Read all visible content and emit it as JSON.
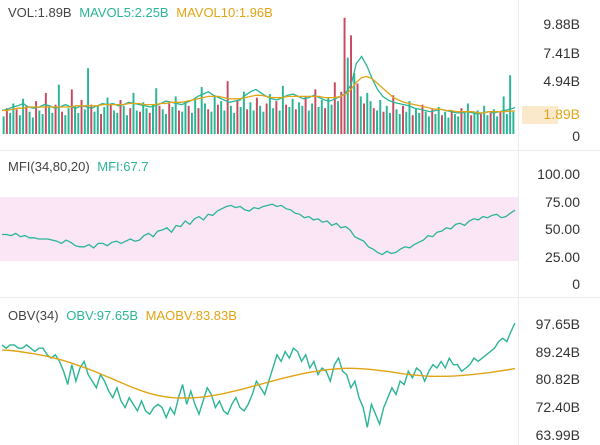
{
  "colors": {
    "up": "#2bb597",
    "down": "#c94a5e",
    "ma_short": "#2bb597",
    "ma_long": "#e0a415",
    "mfi_band": "#fbe6f6",
    "text_default": "#444444"
  },
  "panels": {
    "vol": {
      "header": [
        {
          "text": "VOL:1.89B",
          "color": "#444444"
        },
        {
          "text": "MAVOL5:2.25B",
          "color": "#2bb597"
        },
        {
          "text": "MAVOL10:1.96B",
          "color": "#e0a415"
        }
      ],
      "axis_labels": [
        "9.88B",
        "7.41B",
        "4.94B",
        "1.89B",
        "0"
      ],
      "current_label": "1.89B"
    },
    "mfi": {
      "header": [
        {
          "text": "MFI(34,80,20)",
          "color": "#444444"
        },
        {
          "text": "MFI:67.7",
          "color": "#2bb597"
        }
      ],
      "axis_labels": [
        "100.00",
        "75.00",
        "50.00",
        "25.00",
        "0"
      ]
    },
    "obv": {
      "header": [
        {
          "text": "OBV(34)",
          "color": "#444444"
        },
        {
          "text": "OBV:97.65B",
          "color": "#2bb597"
        },
        {
          "text": "MAOBV:83.83B",
          "color": "#e0a415"
        }
      ],
      "axis_labels": [
        "97.65B",
        "89.24B",
        "80.82B",
        "72.40B",
        "63.99B"
      ]
    }
  },
  "chart_data": [
    {
      "type": "bar",
      "title": "VOL",
      "ylim": [
        0,
        9.88
      ],
      "unit": "B",
      "bars": [
        [
          1.5,
          1
        ],
        [
          2.2,
          0
        ],
        [
          1.8,
          1
        ],
        [
          2.6,
          1
        ],
        [
          2.1,
          0
        ],
        [
          1.6,
          1
        ],
        [
          3.0,
          1
        ],
        [
          2.4,
          0
        ],
        [
          1.9,
          1
        ],
        [
          1.4,
          1
        ],
        [
          2.8,
          0
        ],
        [
          2.0,
          1
        ],
        [
          1.7,
          1
        ],
        [
          3.5,
          0
        ],
        [
          2.3,
          1
        ],
        [
          1.8,
          1
        ],
        [
          2.5,
          0
        ],
        [
          4.2,
          1
        ],
        [
          1.9,
          0
        ],
        [
          1.6,
          1
        ],
        [
          2.2,
          1
        ],
        [
          3.8,
          0
        ],
        [
          2.4,
          1
        ],
        [
          1.8,
          1
        ],
        [
          2.9,
          0
        ],
        [
          2.1,
          1
        ],
        [
          5.6,
          1
        ],
        [
          2.5,
          0
        ],
        [
          1.9,
          1
        ],
        [
          2.4,
          1
        ],
        [
          1.7,
          0
        ],
        [
          2.3,
          1
        ],
        [
          3.1,
          1
        ],
        [
          2.6,
          0
        ],
        [
          2.0,
          1
        ],
        [
          1.8,
          1
        ],
        [
          2.9,
          0
        ],
        [
          2.4,
          1
        ],
        [
          1.6,
          1
        ],
        [
          2.2,
          0
        ],
        [
          3.5,
          1
        ],
        [
          2.0,
          1
        ],
        [
          1.9,
          0
        ],
        [
          2.7,
          1
        ],
        [
          2.2,
          1
        ],
        [
          1.8,
          0
        ],
        [
          2.5,
          1
        ],
        [
          3.9,
          1
        ],
        [
          2.4,
          0
        ],
        [
          2.1,
          1
        ],
        [
          1.7,
          1
        ],
        [
          2.6,
          0
        ],
        [
          2.3,
          1
        ],
        [
          3.2,
          1
        ],
        [
          2.0,
          0
        ],
        [
          1.9,
          1
        ],
        [
          2.8,
          1
        ],
        [
          2.4,
          0
        ],
        [
          1.8,
          1
        ],
        [
          3.0,
          1
        ],
        [
          2.2,
          0
        ],
        [
          4.0,
          1
        ],
        [
          2.6,
          1
        ],
        [
          2.1,
          0
        ],
        [
          1.9,
          1
        ],
        [
          3.3,
          1
        ],
        [
          2.5,
          0
        ],
        [
          2.8,
          1
        ],
        [
          2.0,
          1
        ],
        [
          4.5,
          0
        ],
        [
          2.4,
          1
        ],
        [
          1.8,
          1
        ],
        [
          2.9,
          0
        ],
        [
          2.3,
          1
        ],
        [
          3.6,
          1
        ],
        [
          2.1,
          0
        ],
        [
          2.7,
          1
        ],
        [
          2.0,
          1
        ],
        [
          3.1,
          0
        ],
        [
          2.4,
          1
        ],
        [
          1.9,
          1
        ],
        [
          2.6,
          0
        ],
        [
          3.4,
          1
        ],
        [
          2.2,
          1
        ],
        [
          2.8,
          0
        ],
        [
          2.0,
          1
        ],
        [
          4.1,
          1
        ],
        [
          2.5,
          0
        ],
        [
          2.3,
          1
        ],
        [
          3.0,
          1
        ],
        [
          2.1,
          0
        ],
        [
          2.7,
          1
        ],
        [
          2.4,
          1
        ],
        [
          3.2,
          0
        ],
        [
          2.0,
          1
        ],
        [
          2.6,
          1
        ],
        [
          3.8,
          0
        ],
        [
          2.3,
          1
        ],
        [
          2.9,
          1
        ],
        [
          2.2,
          0
        ],
        [
          3.1,
          1
        ],
        [
          2.5,
          1
        ],
        [
          4.4,
          0
        ],
        [
          2.8,
          1
        ],
        [
          3.6,
          0
        ],
        [
          9.9,
          0
        ],
        [
          6.5,
          1
        ],
        [
          8.4,
          0
        ],
        [
          5.2,
          1
        ],
        [
          4.3,
          0
        ],
        [
          3.2,
          1
        ],
        [
          2.6,
          0
        ],
        [
          3.5,
          1
        ],
        [
          2.8,
          1
        ],
        [
          2.2,
          0
        ],
        [
          2.0,
          1
        ],
        [
          2.9,
          1
        ],
        [
          1.9,
          0
        ],
        [
          2.4,
          1
        ],
        [
          1.8,
          1
        ],
        [
          3.3,
          0
        ],
        [
          2.1,
          1
        ],
        [
          1.7,
          1
        ],
        [
          2.4,
          0
        ],
        [
          1.9,
          1
        ],
        [
          2.8,
          1
        ],
        [
          1.6,
          0
        ],
        [
          2.2,
          1
        ],
        [
          1.8,
          1
        ],
        [
          2.5,
          0
        ],
        [
          1.9,
          1
        ],
        [
          1.5,
          1
        ],
        [
          2.1,
          0
        ],
        [
          1.7,
          1
        ],
        [
          2.3,
          1
        ],
        [
          1.6,
          0
        ],
        [
          1.9,
          1
        ],
        [
          1.4,
          1
        ],
        [
          2.0,
          0
        ],
        [
          1.7,
          1
        ],
        [
          1.5,
          1
        ],
        [
          2.2,
          0
        ],
        [
          1.8,
          1
        ],
        [
          2.6,
          1
        ],
        [
          1.6,
          0
        ],
        [
          1.9,
          1
        ],
        [
          2.0,
          1
        ],
        [
          1.7,
          0
        ],
        [
          2.4,
          1
        ],
        [
          1.6,
          1
        ],
        [
          1.8,
          0
        ],
        [
          2.1,
          1
        ],
        [
          1.5,
          1
        ],
        [
          1.9,
          0
        ],
        [
          3.2,
          1
        ],
        [
          1.7,
          1
        ],
        [
          5.0,
          1
        ],
        [
          1.9,
          1
        ]
      ],
      "mavol5": [
        2.0,
        2.1,
        2.3,
        2.4,
        2.6,
        2.3,
        2.2,
        2.3,
        2.5,
        2.4,
        2.2,
        2.3,
        2.5,
        2.3,
        2.2,
        2.4,
        2.3,
        2.2,
        2.4,
        2.6,
        2.5,
        2.6,
        2.4,
        2.5,
        2.7,
        2.6,
        2.5,
        2.4,
        2.3,
        2.4,
        2.6,
        2.8,
        2.7,
        2.6,
        2.5,
        2.7,
        2.9,
        3.2,
        3.4,
        3.6,
        3.3,
        3.1,
        2.9,
        2.7,
        2.8,
        2.9,
        3.3,
        3.6,
        3.8,
        3.5,
        3.2,
        3.0,
        2.9,
        3.1,
        3.3,
        3.4,
        3.2,
        3.0,
        3.1,
        3.3,
        3.1,
        2.9,
        2.8,
        3.0,
        3.2,
        3.5,
        4.2,
        6.0,
        6.6,
        5.8,
        4.7,
        3.8,
        3.2,
        2.9,
        2.7,
        2.6,
        2.5,
        2.4,
        2.2,
        2.1,
        2.0,
        1.9,
        2.0,
        2.1,
        2.0,
        1.9,
        1.8,
        1.8,
        1.9,
        1.8,
        1.7,
        1.8,
        1.9,
        1.8,
        1.9,
        2.0,
        2.1,
        2.25
      ],
      "mavol10": [
        2.0,
        2.0,
        2.1,
        2.2,
        2.2,
        2.3,
        2.3,
        2.3,
        2.3,
        2.3,
        2.3,
        2.3,
        2.3,
        2.3,
        2.4,
        2.4,
        2.4,
        2.4,
        2.4,
        2.5,
        2.5,
        2.5,
        2.5,
        2.5,
        2.6,
        2.6,
        2.6,
        2.5,
        2.5,
        2.5,
        2.6,
        2.6,
        2.7,
        2.7,
        2.7,
        2.8,
        2.9,
        3.0,
        3.1,
        3.2,
        3.2,
        3.2,
        3.1,
        3.0,
        3.0,
        3.0,
        3.1,
        3.2,
        3.3,
        3.3,
        3.2,
        3.1,
        3.1,
        3.1,
        3.2,
        3.2,
        3.2,
        3.2,
        3.2,
        3.2,
        3.2,
        3.1,
        3.1,
        3.1,
        3.2,
        3.4,
        3.8,
        4.4,
        4.8,
        4.9,
        4.7,
        4.3,
        3.9,
        3.5,
        3.1,
        2.9,
        2.7,
        2.6,
        2.5,
        2.4,
        2.3,
        2.2,
        2.1,
        2.1,
        2.0,
        2.0,
        1.9,
        1.9,
        1.9,
        1.9,
        1.8,
        1.8,
        1.9,
        1.9,
        1.9,
        1.9,
        1.95,
        1.96
      ]
    },
    {
      "type": "line",
      "title": "MFI(34,80,20)",
      "ylim": [
        0,
        100
      ],
      "band": [
        20,
        80
      ],
      "series": [
        {
          "name": "MFI",
          "values": [
            46,
            46,
            45,
            47,
            44,
            45,
            43,
            43,
            42,
            42,
            42,
            41,
            40,
            38,
            41,
            39,
            36,
            35,
            35,
            37,
            34,
            38,
            38,
            36,
            39,
            40,
            38,
            40,
            42,
            40,
            41,
            45,
            47,
            44,
            49,
            50,
            52,
            48,
            54,
            53,
            58,
            55,
            60,
            62,
            59,
            64,
            63,
            67,
            69,
            71,
            72,
            70,
            71,
            68,
            67,
            70,
            69,
            71,
            72,
            73,
            71,
            72,
            69,
            68,
            65,
            64,
            61,
            62,
            59,
            60,
            57,
            58,
            54,
            56,
            52,
            53,
            50,
            44,
            42,
            40,
            35,
            33,
            30,
            28,
            31,
            29,
            30,
            33,
            35,
            34,
            37,
            39,
            41,
            45,
            44,
            48,
            49,
            52,
            51,
            55,
            56,
            54,
            58,
            60,
            59,
            62,
            61,
            63,
            64,
            61,
            62,
            65,
            67.7
          ]
        }
      ]
    },
    {
      "type": "line",
      "title": "OBV(34)",
      "ylim": [
        63.99,
        97.65
      ],
      "series": [
        {
          "name": "OBV",
          "values": [
            91,
            90,
            91,
            91,
            90,
            90,
            91,
            90,
            89,
            90,
            90,
            88,
            87,
            88,
            86,
            83,
            79,
            85,
            80,
            84,
            86,
            82,
            80,
            78,
            82,
            80,
            77,
            75,
            78,
            74,
            72,
            75,
            73,
            71,
            74,
            71,
            70,
            72,
            73,
            72,
            69,
            72,
            70,
            75,
            79,
            73,
            77,
            73,
            70,
            74,
            78,
            76,
            72,
            74,
            71,
            70,
            73,
            75,
            72,
            71,
            73,
            76,
            80,
            78,
            76,
            80,
            84,
            88,
            86,
            89,
            87,
            90,
            89,
            86,
            88,
            84,
            86,
            82,
            84,
            83,
            80,
            85,
            87,
            83,
            82,
            78,
            80,
            75,
            72,
            66,
            73,
            70,
            67,
            72,
            75,
            78,
            76,
            80,
            79,
            83,
            81,
            84,
            83,
            80,
            83,
            85,
            84,
            86,
            84,
            87,
            85,
            85,
            83,
            84,
            85,
            87,
            86,
            87,
            88,
            89,
            90,
            92,
            93,
            92,
            95,
            97.65
          ]
        },
        {
          "name": "MAOBV",
          "values": [
            89.5,
            89.3,
            89.0,
            88.6,
            88.2,
            87.7,
            87.1,
            86.4,
            85.6,
            84.7,
            83.8,
            82.8,
            81.7,
            80.6,
            79.5,
            78.4,
            77.4,
            76.5,
            75.8,
            75.3,
            75.0,
            74.9,
            74.9,
            75.1,
            75.4,
            75.8,
            76.3,
            76.9,
            77.5,
            78.2,
            78.9,
            79.6,
            80.3,
            81.0,
            81.6,
            82.2,
            82.7,
            83.1,
            83.5,
            83.7,
            83.9,
            83.9,
            83.8,
            83.6,
            83.3,
            83.0,
            82.6,
            82.2,
            81.9,
            81.7,
            81.5,
            81.5,
            81.5,
            81.6,
            81.8,
            82.0,
            82.3,
            82.6,
            83.0,
            83.4,
            83.83
          ]
        }
      ]
    }
  ]
}
